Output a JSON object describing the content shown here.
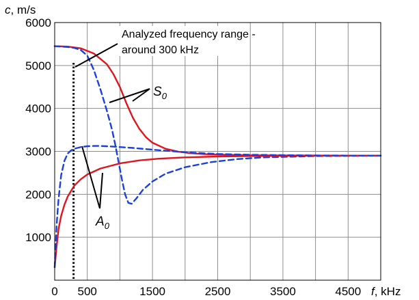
{
  "chart_data": {
    "type": "line",
    "xlabel": {
      "var": "f",
      "unit": ", kHz"
    },
    "ylabel": {
      "var": "c",
      "unit": ", m/s"
    },
    "xlim": [
      0,
      5000
    ],
    "ylim": [
      0,
      6000
    ],
    "x_ticks": [
      0,
      500,
      1500,
      2500,
      3500,
      4500
    ],
    "y_ticks": [
      1000,
      2000,
      3000,
      4000,
      5000,
      6000
    ],
    "grid": true,
    "series": [
      {
        "mode": "S0",
        "style": "solid",
        "color": "#e0141e",
        "x": [
          0,
          200,
          400,
          600,
          800,
          900,
          1000,
          1100,
          1200,
          1300,
          1400,
          1500,
          1700,
          1900,
          2100,
          2300,
          2600,
          3000,
          3500,
          4000,
          4500,
          5000
        ],
        "y": [
          5450,
          5440,
          5400,
          5280,
          5030,
          4800,
          4500,
          4120,
          3780,
          3520,
          3330,
          3200,
          3060,
          2990,
          2955,
          2935,
          2920,
          2910,
          2905,
          2903,
          2902,
          2900
        ]
      },
      {
        "mode": "S0",
        "style": "dashed",
        "color": "#1a3fe0",
        "x": [
          0,
          200,
          300,
          400,
          500,
          600,
          700,
          800,
          880,
          930,
          980,
          1030,
          1080,
          1130,
          1180,
          1250,
          1350,
          1500,
          1700,
          2000,
          2400,
          2800,
          3200,
          4000,
          5000
        ],
        "y": [
          5450,
          5430,
          5410,
          5360,
          5230,
          4900,
          4450,
          3950,
          3500,
          3150,
          2750,
          2350,
          2000,
          1800,
          1780,
          1900,
          2100,
          2300,
          2480,
          2630,
          2750,
          2820,
          2860,
          2890,
          2900
        ]
      },
      {
        "mode": "A0",
        "style": "solid",
        "color": "#e0141e",
        "x": [
          0,
          30,
          60,
          100,
          150,
          200,
          300,
          400,
          500,
          700,
          1000,
          1300,
          1600,
          2000,
          2500,
          3000,
          3500,
          4000,
          5000
        ],
        "y": [
          300,
          800,
          1200,
          1500,
          1760,
          1950,
          2200,
          2350,
          2460,
          2600,
          2720,
          2790,
          2830,
          2860,
          2880,
          2890,
          2895,
          2900,
          2900
        ]
      },
      {
        "mode": "A0",
        "style": "dashed",
        "color": "#1a3fe0",
        "x": [
          0,
          30,
          60,
          100,
          150,
          200,
          250,
          300,
          400,
          500,
          600,
          700,
          800,
          900,
          1000,
          1200,
          1500,
          2000,
          2500,
          3000,
          4000,
          5000
        ],
        "y": [
          300,
          1300,
          1900,
          2450,
          2780,
          2950,
          3020,
          3060,
          3100,
          3120,
          3125,
          3125,
          3120,
          3110,
          3100,
          3080,
          3040,
          2980,
          2940,
          2920,
          2905,
          2900
        ]
      }
    ],
    "marker_line": {
      "x": 300,
      "style": "dotted",
      "color": "#000000"
    },
    "annotations": {
      "range_note_line1": "Analyzed frequency range -",
      "range_note_line2": "around 300 kHz",
      "s0_label": "S",
      "s0_sub": "0",
      "a0_label": "A",
      "a0_sub": "0"
    }
  }
}
